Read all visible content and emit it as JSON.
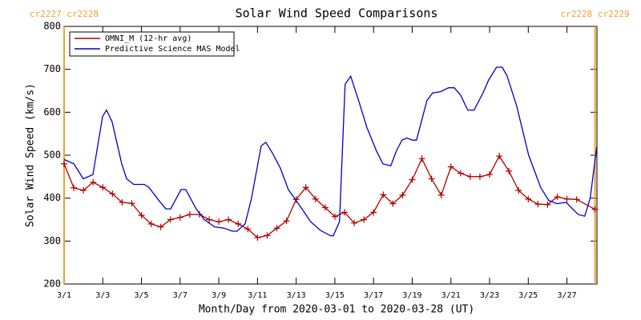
{
  "chart_data": {
    "type": "line",
    "title": "Solar Wind Speed Comparisons",
    "x_label": "Month/Day from 2020-03-01 to 2020-03-28 (UT)",
    "y_label": "Solar Wind Speed (km/s)",
    "xlim": [
      0,
      27.55
    ],
    "ylim": [
      200,
      800
    ],
    "xticks": [
      {
        "value": 0,
        "label": "3/1"
      },
      {
        "value": 2,
        "label": "3/3"
      },
      {
        "value": 4,
        "label": "3/5"
      },
      {
        "value": 6,
        "label": "3/7"
      },
      {
        "value": 8,
        "label": "3/9"
      },
      {
        "value": 10,
        "label": "3/11"
      },
      {
        "value": 12,
        "label": "3/13"
      },
      {
        "value": 14,
        "label": "3/15"
      },
      {
        "value": 16,
        "label": "3/17"
      },
      {
        "value": 18,
        "label": "3/19"
      },
      {
        "value": 20,
        "label": "3/21"
      },
      {
        "value": 22,
        "label": "3/23"
      },
      {
        "value": 24,
        "label": "3/25"
      },
      {
        "value": 26,
        "label": "3/27"
      }
    ],
    "yticks": [
      200,
      300,
      400,
      500,
      600,
      700,
      800
    ],
    "legend": "upper left",
    "annotations": [
      {
        "x": 0,
        "label": "cr2227 cr2228",
        "color": "#f0a030"
      },
      {
        "x": 27.45,
        "label": "cr2228 cr2229",
        "color": "#f0a030"
      }
    ],
    "series": [
      {
        "name": "OMNI_M (12-hr avg)",
        "color": "#b00000",
        "marker": "+",
        "x": [
          0,
          0.5,
          1,
          1.5,
          2,
          2.5,
          3,
          3.5,
          4,
          4.5,
          5,
          5.5,
          6,
          6.5,
          7,
          7.5,
          8,
          8.5,
          9,
          9.5,
          10,
          10.5,
          11,
          11.5,
          12,
          12.5,
          13,
          13.5,
          14,
          14.5,
          15,
          15.5,
          16,
          16.5,
          17,
          17.5,
          18,
          18.5,
          19,
          19.5,
          20,
          20.5,
          21,
          21.5,
          22,
          22.5,
          23,
          23.5,
          24,
          24.5,
          25,
          25.5,
          26,
          26.5,
          27.45
        ],
        "values": [
          480,
          424,
          418,
          437,
          425,
          410,
          390,
          388,
          360,
          340,
          333,
          350,
          355,
          362,
          362,
          350,
          345,
          350,
          340,
          328,
          308,
          313,
          330,
          347,
          397,
          425,
          398,
          378,
          357,
          367,
          342,
          350,
          367,
          408,
          387,
          407,
          443,
          492,
          445,
          407,
          473,
          458,
          450,
          450,
          455,
          498,
          463,
          418,
          398,
          386,
          385,
          403,
          398,
          397,
          374
        ]
      },
      {
        "name": "Predictive Science MAS Model",
        "color": "#0000cc",
        "x": [
          0,
          0.5,
          0.99,
          1.49,
          1.99,
          2.19,
          2.48,
          2.98,
          3.23,
          3.6,
          4.14,
          4.39,
          4.89,
          5.26,
          5.51,
          6.05,
          6.29,
          6.83,
          7.25,
          7.78,
          8.28,
          8.7,
          8.94,
          9.36,
          9.69,
          10.19,
          10.43,
          10.77,
          11.18,
          11.59,
          12.22,
          12.75,
          13.25,
          13.75,
          13.91,
          14.24,
          14.53,
          14.82,
          15.28,
          15.65,
          16.15,
          16.48,
          16.89,
          17.18,
          17.47,
          17.72,
          18.01,
          18.22,
          18.76,
          19.05,
          19.46,
          19.88,
          20.17,
          20.5,
          20.87,
          21.2,
          21.66,
          21.95,
          22.36,
          22.65,
          22.9,
          23.4,
          24.02,
          24.64,
          25.05,
          25.47,
          25.96,
          26.29,
          26.58,
          26.92,
          27.2,
          27.54
        ],
        "values": [
          490,
          480,
          445,
          455,
          590,
          605,
          578,
          480,
          445,
          432,
          432,
          425,
          395,
          375,
          375,
          420,
          420,
          375,
          350,
          333,
          330,
          323,
          323,
          340,
          400,
          522,
          530,
          505,
          470,
          420,
          380,
          345,
          325,
          313,
          312,
          345,
          665,
          684,
          620,
          565,
          510,
          480,
          475,
          510,
          535,
          540,
          535,
          535,
          627,
          645,
          648,
          657,
          657,
          640,
          605,
          605,
          645,
          675,
          705,
          705,
          685,
          615,
          500,
          425,
          395,
          387,
          390,
          375,
          362,
          358,
          400,
          520
        ]
      }
    ]
  }
}
